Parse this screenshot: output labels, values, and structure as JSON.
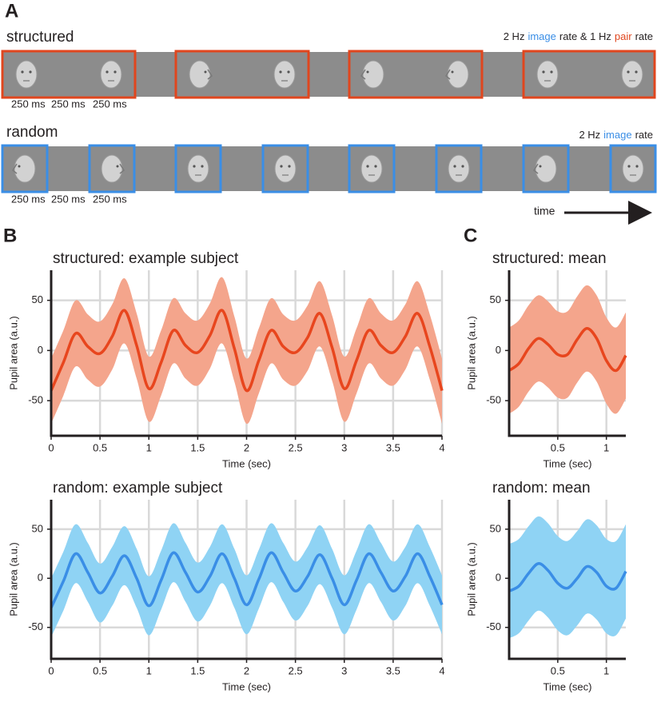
{
  "panel_labels": {
    "a": "A",
    "b": "B",
    "c": "C"
  },
  "stimulus": {
    "rows": [
      {
        "label": "structured",
        "rate_label": [
          "2 Hz",
          "image",
          "rate & 1 Hz",
          "pair",
          "rate"
        ],
        "rate_colors": [
          "#231f20",
          "#3a8ee6",
          "#231f20",
          "#e0461e",
          "#231f20"
        ],
        "frame_color": "#e0461e",
        "timings": [
          "250 ms",
          "250 ms",
          "250 ms"
        ]
      },
      {
        "label": "random",
        "rate_label": [
          "2 Hz",
          "image",
          "rate"
        ],
        "rate_colors": [
          "#231f20",
          "#3a8ee6",
          "#231f20"
        ],
        "frame_color": "#3a8ee6",
        "timings": [
          "250 ms",
          "250 ms",
          "250 ms"
        ]
      }
    ],
    "time_label": "time"
  },
  "chart_data": [
    {
      "type": "line",
      "title": "structured: example subject",
      "x_label": "Time (sec)",
      "y_label": "Pupil area (a.u.)",
      "xlim": [
        0,
        4
      ],
      "ylim": [
        -85,
        80
      ],
      "xticks": [
        0,
        0.5,
        1,
        1.5,
        2,
        2.5,
        3,
        3.5,
        4
      ],
      "yticks": [
        -50,
        0,
        50
      ],
      "grid": true,
      "x": [
        0,
        0.125,
        0.25,
        0.375,
        0.5,
        0.625,
        0.75,
        0.875,
        1,
        1.125,
        1.25,
        1.375,
        1.5,
        1.625,
        1.75,
        1.875,
        2,
        2.125,
        2.25,
        2.375,
        2.5,
        2.625,
        2.75,
        2.875,
        3,
        3.125,
        3.25,
        3.375,
        3.5,
        3.625,
        3.75,
        3.875,
        4
      ],
      "series": [
        {
          "color": "#e8461e",
          "band_color": "#f4a58c",
          "values": [
            -40,
            -12,
            17,
            4,
            -3,
            14,
            40,
            5,
            -38,
            -12,
            20,
            5,
            -2,
            15,
            40,
            2,
            -40,
            -10,
            20,
            4,
            -2,
            13,
            37,
            3,
            -38,
            -10,
            20,
            5,
            -2,
            14,
            37,
            4,
            -40
          ],
          "upper": [
            -8,
            20,
            50,
            36,
            29,
            46,
            72,
            37,
            -6,
            20,
            52,
            37,
            30,
            47,
            73,
            34,
            -8,
            22,
            52,
            36,
            30,
            45,
            69,
            35,
            -6,
            22,
            52,
            37,
            30,
            46,
            69,
            36,
            -8
          ],
          "lower": [
            -73,
            -45,
            -16,
            -29,
            -36,
            -19,
            7,
            -28,
            -71,
            -45,
            -13,
            -28,
            -35,
            -18,
            7,
            -31,
            -73,
            -43,
            -13,
            -29,
            -35,
            -20,
            4,
            -30,
            -71,
            -43,
            -13,
            -28,
            -35,
            -19,
            4,
            -29,
            -73
          ]
        }
      ]
    },
    {
      "type": "line",
      "title": "random: example subject",
      "x_label": "Time (sec)",
      "y_label": "Pupil area (a.u.)",
      "xlim": [
        0,
        4
      ],
      "ylim": [
        -82,
        80
      ],
      "xticks": [
        0,
        0.5,
        1,
        1.5,
        2,
        2.5,
        3,
        3.5,
        4
      ],
      "yticks": [
        -50,
        0,
        50
      ],
      "grid": true,
      "x": [
        0,
        0.125,
        0.25,
        0.375,
        0.5,
        0.625,
        0.75,
        0.875,
        1,
        1.125,
        1.25,
        1.375,
        1.5,
        1.625,
        1.75,
        1.875,
        2,
        2.125,
        2.25,
        2.375,
        2.5,
        2.625,
        2.75,
        2.875,
        3,
        3.125,
        3.25,
        3.375,
        3.5,
        3.625,
        3.75,
        3.875,
        4
      ],
      "series": [
        {
          "color": "#3a8ee6",
          "band_color": "#8fd3f4",
          "values": [
            -30,
            -3,
            25,
            6,
            -15,
            2,
            23,
            0,
            -28,
            -2,
            26,
            6,
            -14,
            2,
            25,
            0,
            -27,
            -1,
            26,
            6,
            -13,
            2,
            24,
            0,
            -27,
            -2,
            25,
            6,
            -13,
            2,
            25,
            2,
            -27
          ],
          "upper": [
            0,
            27,
            55,
            36,
            15,
            32,
            53,
            30,
            2,
            28,
            56,
            36,
            16,
            32,
            55,
            30,
            3,
            29,
            56,
            36,
            17,
            32,
            54,
            30,
            3,
            28,
            55,
            36,
            17,
            32,
            55,
            32,
            3
          ],
          "lower": [
            -60,
            -33,
            -5,
            -24,
            -45,
            -28,
            -7,
            -30,
            -58,
            -32,
            -4,
            -24,
            -44,
            -28,
            -5,
            -30,
            -57,
            -31,
            -4,
            -24,
            -43,
            -28,
            -6,
            -30,
            -57,
            -32,
            -5,
            -24,
            -43,
            -28,
            -5,
            -28,
            -57
          ]
        }
      ]
    },
    {
      "type": "line",
      "title": "structured: mean",
      "x_label": "Time (sec)",
      "y_label": "Pupil area (a.u.)",
      "xlim": [
        0,
        1.2
      ],
      "ylim": [
        -85,
        80
      ],
      "xticks": [
        0.5,
        1
      ],
      "yticks": [
        -50,
        0,
        50
      ],
      "grid": true,
      "x": [
        0,
        0.1,
        0.2,
        0.3,
        0.4,
        0.5,
        0.6,
        0.7,
        0.8,
        0.9,
        1,
        1.1,
        1.2
      ],
      "series": [
        {
          "color": "#e8461e",
          "band_color": "#f4a58c",
          "values": [
            -20,
            -13,
            2,
            12,
            6,
            -4,
            -4,
            11,
            22,
            12,
            -10,
            -20,
            -5
          ],
          "upper": [
            23,
            30,
            45,
            55,
            49,
            39,
            39,
            54,
            65,
            55,
            33,
            23,
            38
          ],
          "lower": [
            -63,
            -56,
            -41,
            -31,
            -37,
            -47,
            -47,
            -32,
            -21,
            -31,
            -53,
            -63,
            -48
          ]
        }
      ]
    },
    {
      "type": "line",
      "title": "random: mean",
      "x_label": "Time (sec)",
      "y_label": "Pupil area (a.u.)",
      "xlim": [
        0,
        1.2
      ],
      "ylim": [
        -82,
        80
      ],
      "xticks": [
        0.5,
        1
      ],
      "yticks": [
        -50,
        0,
        50
      ],
      "grid": true,
      "x": [
        0,
        0.1,
        0.2,
        0.3,
        0.4,
        0.5,
        0.6,
        0.7,
        0.8,
        0.9,
        1,
        1.1,
        1.2
      ],
      "series": [
        {
          "color": "#3a8ee6",
          "band_color": "#8fd3f4",
          "values": [
            -13,
            -8,
            5,
            15,
            8,
            -5,
            -10,
            0,
            12,
            6,
            -8,
            -10,
            7
          ],
          "upper": [
            35,
            40,
            53,
            63,
            56,
            43,
            38,
            48,
            60,
            54,
            40,
            38,
            55
          ],
          "lower": [
            -61,
            -56,
            -43,
            -33,
            -40,
            -53,
            -58,
            -48,
            -36,
            -42,
            -56,
            -58,
            -41
          ]
        }
      ]
    }
  ]
}
